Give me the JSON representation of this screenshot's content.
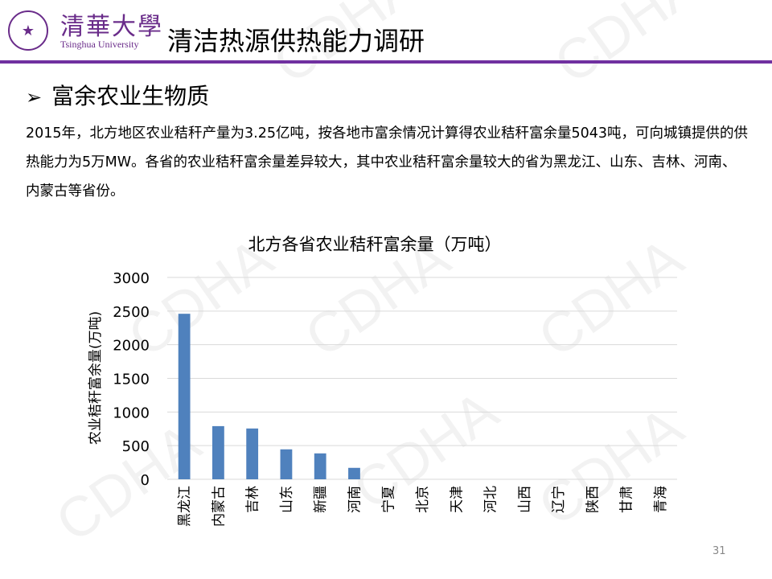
{
  "header": {
    "university_zh": "清華大學",
    "university_en": "Tsinghua University",
    "title": "清洁热源供热能力调研"
  },
  "section": {
    "bullet": "➢",
    "heading": "富余农业生物质"
  },
  "paragraph": "2015年，北方地区农业秸秆产量为3.25亿吨，按各地市富余情况计算得农业秸秆富余量5043吨，可向城镇提供的供热能力为5万MW。各省的农业秸秆富余量差异较大，其中农业秸秆富余量较大的省为黑龙江、山东、吉林、河南、内蒙古等省份。",
  "watermark": "CDHA",
  "page_number": "31",
  "colors": {
    "accent": "#7030a0",
    "bar": "#4f81bd"
  },
  "chart_data": {
    "type": "bar",
    "title": "北方各省农业秸秆富余量（万吨）",
    "xlabel": "",
    "ylabel": "农业秸秆富余量(万吨)",
    "ylim": [
      0,
      3000
    ],
    "yticks": [
      "0",
      "500",
      "1000",
      "1500",
      "2000",
      "2500",
      "3000"
    ],
    "grid": true,
    "categories": [
      "黑龙江",
      "内蒙古",
      "吉林",
      "山东",
      "新疆",
      "河南",
      "宁夏",
      "北京",
      "天津",
      "河北",
      "山西",
      "辽宁",
      "陕西",
      "甘肃",
      "青海"
    ],
    "values": [
      2460,
      790,
      755,
      445,
      385,
      170,
      0,
      0,
      0,
      0,
      0,
      0,
      0,
      0,
      0
    ]
  }
}
